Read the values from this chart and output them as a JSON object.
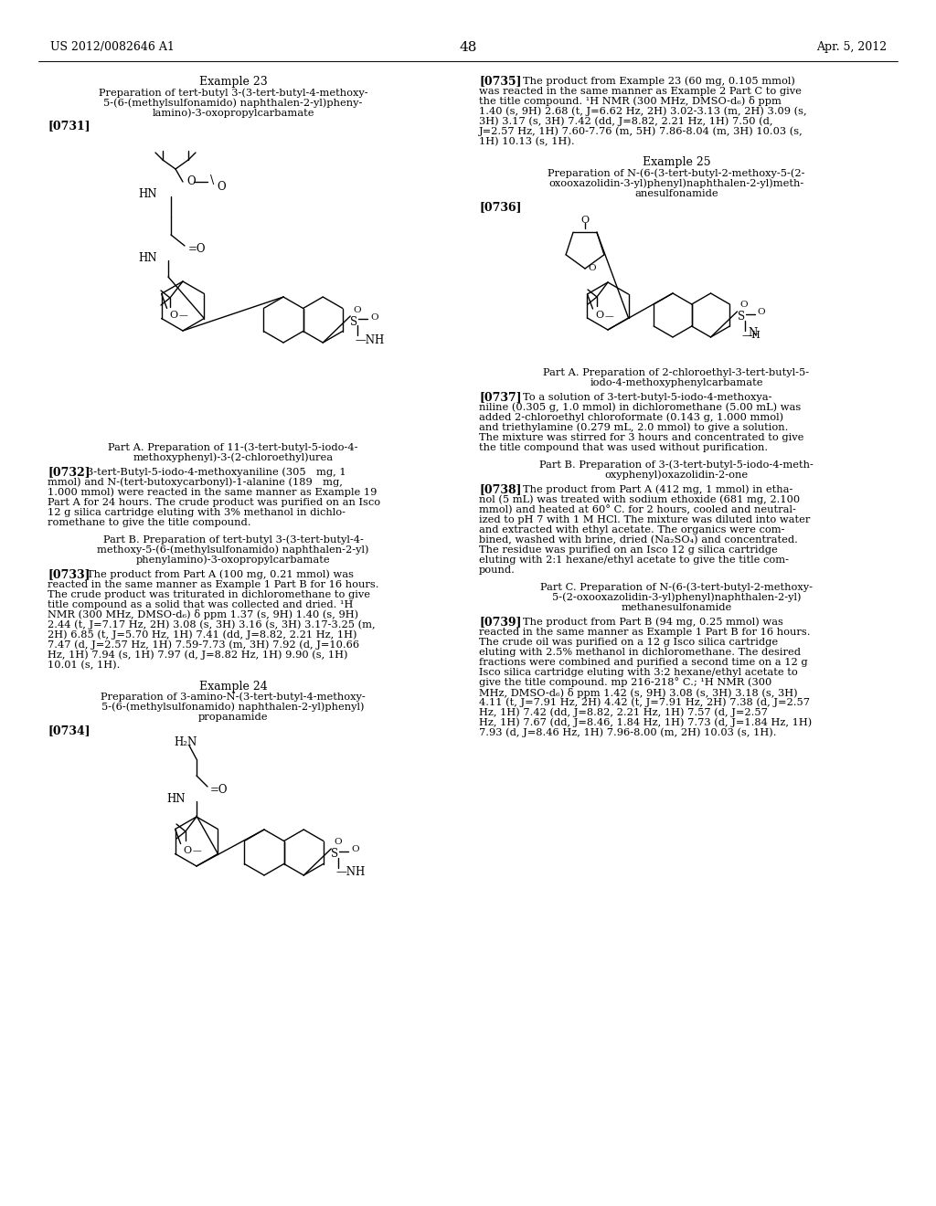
{
  "patent_left": "US 2012/0082646 A1",
  "patent_right": "Apr. 5, 2012",
  "page_number": "48",
  "bg": "#ffffff",
  "text_color": "#000000"
}
